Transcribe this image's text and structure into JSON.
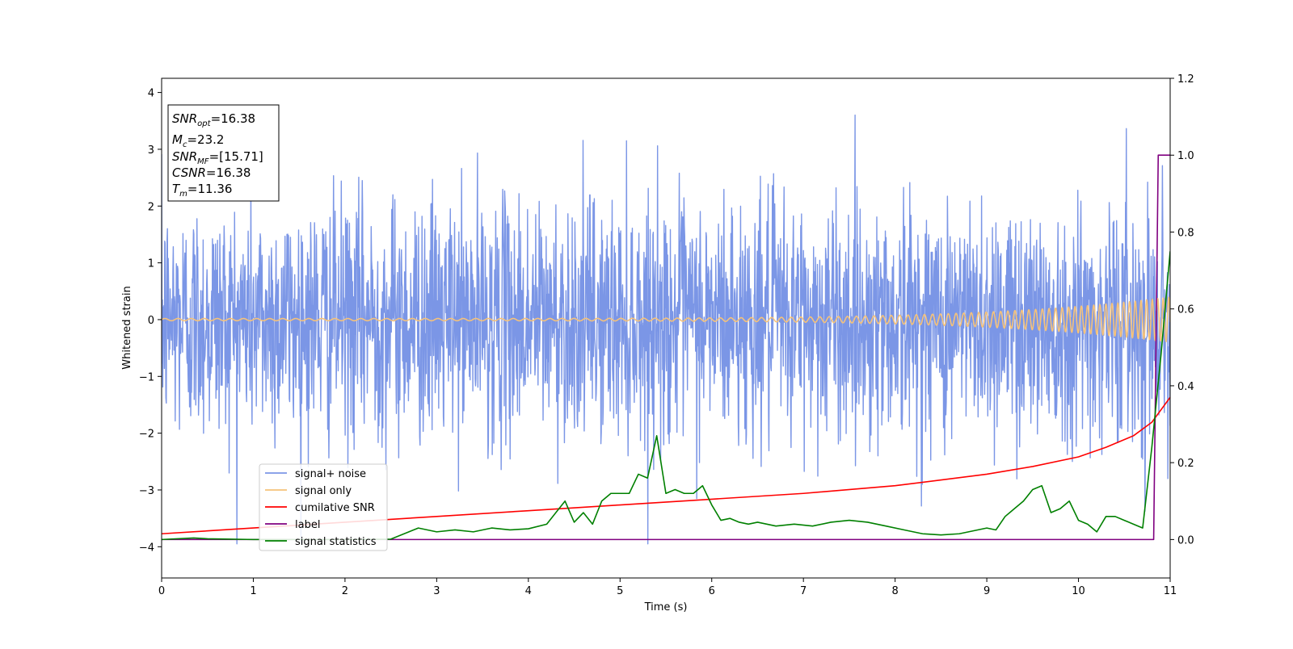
{
  "chart_data": {
    "type": "line",
    "xlabel": "Time (s)",
    "ylabel": "Whitened strain",
    "xlim": [
      0,
      11
    ],
    "ylim_left": [
      -4.55,
      4.25
    ],
    "ylim_right": [
      -0.1,
      1.2
    ],
    "x_ticks": [
      0,
      1,
      2,
      3,
      4,
      5,
      6,
      7,
      8,
      9,
      10,
      11
    ],
    "y_ticks_left": [
      -4,
      -3,
      -2,
      -1,
      0,
      1,
      2,
      3,
      4
    ],
    "y_ticks_right": [
      0.0,
      0.2,
      0.4,
      0.6,
      0.8,
      1.0,
      1.2
    ],
    "grid": false,
    "legend_position": "lower-left",
    "annotation": [
      {
        "base": "SNR",
        "sub": "opt",
        "value": "=16.38"
      },
      {
        "base": "M",
        "sub": "c",
        "value": "=23.2"
      },
      {
        "base": "SNR",
        "sub": "MF",
        "value": "=[15.71]"
      },
      {
        "base": "CSNR",
        "sub": "",
        "value": "=16.38"
      },
      {
        "base": "T",
        "sub": "m",
        "value": "=11.36"
      }
    ],
    "series": [
      {
        "name": "signal+ noise",
        "axis": "left",
        "color": "#7b96e6",
        "kind": "noise",
        "std": 1.0,
        "range": [
          -3.95,
          3.85
        ]
      },
      {
        "name": "signal only",
        "axis": "left",
        "color": "#f5c27a",
        "kind": "chirp",
        "amplitude_start": 0.02,
        "amplitude_end": 0.4
      },
      {
        "name": "cumilative SNR",
        "axis": "right",
        "color": "#ff0000",
        "x": [
          0,
          1,
          2,
          3,
          4,
          5,
          6,
          7,
          8,
          9,
          9.5,
          10,
          10.3,
          10.6,
          10.8,
          11
        ],
        "y": [
          0.015,
          0.03,
          0.045,
          0.06,
          0.075,
          0.09,
          0.105,
          0.12,
          0.14,
          0.17,
          0.19,
          0.215,
          0.24,
          0.27,
          0.305,
          0.37
        ]
      },
      {
        "name": "label",
        "axis": "right",
        "color": "#800080",
        "x": [
          0,
          10.82,
          10.87,
          11
        ],
        "y": [
          0.0,
          0.0,
          1.0,
          1.0
        ]
      },
      {
        "name": "signal statistics",
        "axis": "right",
        "color": "#008000",
        "x": [
          0,
          0.35,
          0.5,
          1,
          1.5,
          2,
          2.5,
          2.8,
          3,
          3.2,
          3.4,
          3.6,
          3.8,
          4,
          4.2,
          4.3,
          4.4,
          4.5,
          4.6,
          4.7,
          4.8,
          4.9,
          5,
          5.1,
          5.2,
          5.3,
          5.4,
          5.5,
          5.6,
          5.7,
          5.8,
          5.9,
          6,
          6.1,
          6.2,
          6.3,
          6.4,
          6.5,
          6.7,
          6.9,
          7.1,
          7.3,
          7.5,
          7.7,
          7.9,
          8.1,
          8.3,
          8.5,
          8.7,
          8.9,
          9.0,
          9.1,
          9.2,
          9.3,
          9.4,
          9.5,
          9.6,
          9.7,
          9.8,
          9.9,
          10.0,
          10.1,
          10.2,
          10.3,
          10.4,
          10.5,
          10.6,
          10.7,
          10.8,
          10.9,
          11
        ],
        "y": [
          0.0,
          0.004,
          0.002,
          0.0,
          0.0,
          0.0,
          0.001,
          0.03,
          0.02,
          0.025,
          0.02,
          0.03,
          0.025,
          0.028,
          0.04,
          0.07,
          0.1,
          0.045,
          0.07,
          0.04,
          0.1,
          0.12,
          0.12,
          0.12,
          0.17,
          0.16,
          0.27,
          0.12,
          0.13,
          0.12,
          0.12,
          0.14,
          0.09,
          0.05,
          0.055,
          0.045,
          0.04,
          0.045,
          0.035,
          0.04,
          0.035,
          0.045,
          0.05,
          0.045,
          0.035,
          0.025,
          0.015,
          0.012,
          0.015,
          0.025,
          0.03,
          0.025,
          0.06,
          0.08,
          0.1,
          0.13,
          0.14,
          0.07,
          0.08,
          0.1,
          0.05,
          0.04,
          0.02,
          0.06,
          0.06,
          0.05,
          0.04,
          0.03,
          0.24,
          0.48,
          0.75
        ]
      }
    ]
  }
}
